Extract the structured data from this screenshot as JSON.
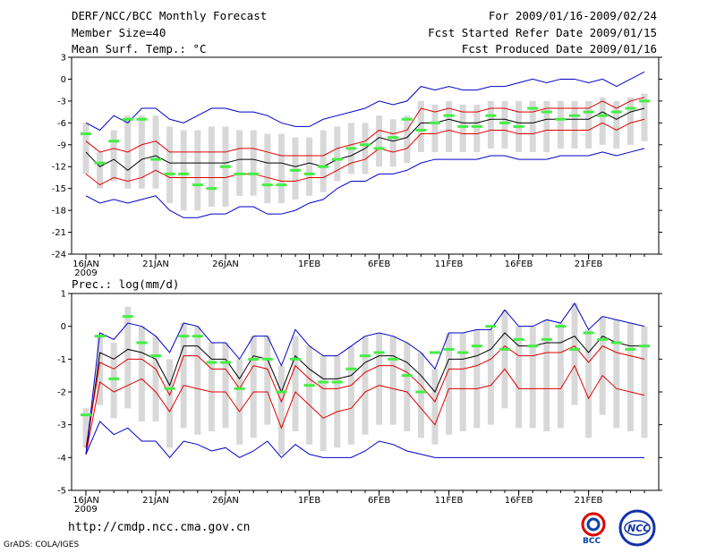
{
  "header": {
    "title": "DERF/NCC/BCC Monthly Forecast",
    "member": "Member Size=40",
    "var1": "Mean Surf. Temp.: °C",
    "period": "For 2009/01/16-2009/02/24",
    "started": "Fcst Started Refer Date 2009/01/15",
    "produced": "Fcst Produced Date 2009/01/16"
  },
  "panel2_title": "Prec.: log(mm/d)",
  "footer": {
    "url": "http://cmdp.ncc.cma.gov.cn",
    "grads": "GrADS: COLA/IGES"
  },
  "logos": {
    "bcc": "BCC",
    "ncc": "NCC"
  },
  "colors": {
    "blue": "#0000c8",
    "red": "#e00000",
    "green": "#44ee44",
    "box": "#d8d8d8"
  },
  "chart_data": [
    {
      "type": "line",
      "title": "Mean Surf. Temp.: °C",
      "x_ticks": [
        "16JAN",
        "21JAN",
        "26JAN",
        "1FEB",
        "6FEB",
        "11FEB",
        "16FEB",
        "21FEB"
      ],
      "x_tick_index": [
        0,
        5,
        10,
        16,
        21,
        26,
        31,
        36
      ],
      "year_label": "2009",
      "ylim": [
        -24,
        3
      ],
      "yticks": [
        3,
        0,
        -3,
        -6,
        -9,
        -12,
        -15,
        -18,
        -21,
        -24
      ],
      "series": [
        {
          "name": "ensemble-mean",
          "color": "black",
          "values": [
            -10,
            -12,
            -11,
            -12.5,
            -11,
            -10.5,
            -11.5,
            -11.5,
            -11.5,
            -11.5,
            -11.5,
            -11,
            -11,
            -11.5,
            -11.5,
            -12,
            -11.5,
            -12,
            -11,
            -10.5,
            -9.5,
            -8,
            -8.5,
            -8,
            -6,
            -6,
            -5.5,
            -6,
            -6,
            -5.5,
            -5.5,
            -6,
            -6,
            -5.5,
            -5.5,
            -5.5,
            -5.5,
            -4.5,
            -5.5,
            -4.5,
            -4
          ]
        },
        {
          "name": "upper-spread",
          "color": "red",
          "values": [
            -8.5,
            -10,
            -9.5,
            -10,
            -9,
            -8.5,
            -10,
            -10,
            -10,
            -10,
            -10,
            -9.5,
            -9.5,
            -10,
            -10.5,
            -10.5,
            -10.5,
            -10.5,
            -9.5,
            -9,
            -8.5,
            -7,
            -7.5,
            -7,
            -4,
            -4.5,
            -4,
            -4.5,
            -4.5,
            -4,
            -4,
            -4.5,
            -4.5,
            -4,
            -4,
            -4,
            -4,
            -3,
            -4,
            -3,
            -2.5
          ]
        },
        {
          "name": "lower-spread",
          "color": "red",
          "values": [
            -13,
            -14.5,
            -13.5,
            -14,
            -13.5,
            -12.5,
            -13.5,
            -13.5,
            -13.5,
            -13.5,
            -13.5,
            -13,
            -13,
            -13.5,
            -14,
            -14,
            -13.5,
            -13.5,
            -12.5,
            -11.5,
            -11,
            -9.5,
            -10,
            -9.5,
            -7.5,
            -7.5,
            -7,
            -7.5,
            -7.5,
            -7,
            -7,
            -7.5,
            -7.5,
            -7,
            -7,
            -7,
            -7,
            -6,
            -7,
            -6,
            -5.5
          ]
        },
        {
          "name": "ensemble-max",
          "color": "blue",
          "values": [
            -6,
            -7,
            -5,
            -6,
            -4,
            -4,
            -5.5,
            -6,
            -5,
            -4,
            -4,
            -4.5,
            -4.5,
            -5,
            -6,
            -6.5,
            -6.5,
            -5.5,
            -5,
            -4.5,
            -4,
            -3,
            -3.5,
            -3,
            -1,
            -1.5,
            -1,
            -1.5,
            -1.5,
            -1,
            -1,
            -0.5,
            0,
            -0.5,
            0,
            0,
            -0.5,
            0,
            -1,
            0,
            1
          ]
        },
        {
          "name": "ensemble-min",
          "color": "blue",
          "values": [
            -16,
            -17,
            -16.5,
            -17,
            -16.5,
            -16,
            -18,
            -19,
            -19,
            -18.5,
            -18.5,
            -17.5,
            -17.5,
            -18.5,
            -18.5,
            -18,
            -17,
            -16.5,
            -15,
            -14,
            -14,
            -13,
            -13,
            -12.5,
            -11.5,
            -11,
            -11,
            -11,
            -11,
            -10.5,
            -10.5,
            -11,
            -11,
            -11,
            -10.5,
            -10.5,
            -10.5,
            -10,
            -10.5,
            -10,
            -9.5
          ]
        }
      ],
      "observed": [
        -7.5,
        -11.5,
        -8.5,
        -5.5,
        -5.5,
        -11,
        -13,
        -13,
        -14.5,
        -15,
        -12,
        -13,
        -13,
        -14.5,
        -14.5,
        -12.5,
        -13,
        -12,
        -11,
        -9.5,
        -9,
        -9.5,
        -8,
        -5.5,
        -7,
        -6,
        -5,
        -6.5,
        -6.5,
        -5,
        -6,
        -6.5,
        -4,
        -4.5,
        -5.5,
        -5,
        -4.5,
        -5,
        -4.5,
        -4,
        -3
      ],
      "box_high": [
        -6,
        -10,
        -7,
        -5,
        -5,
        -5,
        -6.5,
        -7,
        -7,
        -6.5,
        -6.5,
        -7,
        -7,
        -7.5,
        -7.5,
        -8,
        -8,
        -7,
        -6.5,
        -6,
        -6,
        -5,
        -5.5,
        -5,
        -3,
        -3.5,
        -3,
        -3.5,
        -3.5,
        -3,
        -3,
        -3,
        -3,
        -3,
        -3,
        -3,
        -3,
        -2.5,
        -3,
        -2.5,
        -2
      ],
      "box_low": [
        -13,
        -15,
        -14,
        -15,
        -15,
        -15,
        -17,
        -18,
        -18,
        -17.5,
        -17.5,
        -16,
        -16,
        -17,
        -17,
        -16.5,
        -16,
        -15.5,
        -14,
        -13,
        -13,
        -12,
        -12,
        -11.5,
        -10,
        -10,
        -10,
        -10,
        -10,
        -9.5,
        -9.5,
        -10,
        -10,
        -10,
        -9.5,
        -9.5,
        -9.5,
        -9,
        -9.5,
        -9,
        -8.5
      ]
    },
    {
      "type": "line",
      "title": "Prec.: log(mm/d)",
      "x_ticks": [
        "16JAN",
        "21JAN",
        "26JAN",
        "1FEB",
        "6FEB",
        "11FEB",
        "16FEB",
        "21FEB"
      ],
      "x_tick_index": [
        0,
        5,
        10,
        16,
        21,
        26,
        31,
        36
      ],
      "year_label": "2009",
      "ylim": [
        -5,
        1
      ],
      "yticks": [
        1,
        0,
        -1,
        -2,
        -3,
        -4,
        -5
      ],
      "series": [
        {
          "name": "ensemble-mean",
          "color": "black",
          "values": [
            -3.9,
            -0.8,
            -1,
            -0.7,
            -0.8,
            -1,
            -1.8,
            -0.6,
            -0.6,
            -1,
            -1,
            -1.6,
            -0.9,
            -1,
            -2,
            -0.9,
            -1.3,
            -1.6,
            -1.6,
            -1.5,
            -1.1,
            -0.9,
            -0.9,
            -1.1,
            -1.5,
            -2,
            -1,
            -1,
            -0.9,
            -0.7,
            -0.2,
            -0.6,
            -0.6,
            -0.5,
            -0.5,
            -0.3,
            -0.8,
            -0.3,
            -0.5,
            -0.6,
            -0.6
          ]
        },
        {
          "name": "upper-spread",
          "color": "red",
          "values": [
            -3.7,
            -1.1,
            -1.3,
            -1,
            -1,
            -1.3,
            -2.1,
            -0.9,
            -0.9,
            -1.3,
            -1.3,
            -1.9,
            -1.2,
            -1.3,
            -2.3,
            -1.2,
            -1.6,
            -1.9,
            -1.9,
            -1.8,
            -1.4,
            -1.2,
            -1.2,
            -1.4,
            -1.8,
            -2.3,
            -1.3,
            -1.3,
            -1.2,
            -1,
            -0.6,
            -0.9,
            -0.9,
            -0.8,
            -0.8,
            -0.6,
            -1.1,
            -0.6,
            -0.8,
            -0.9,
            -1
          ]
        },
        {
          "name": "lower-spread",
          "color": "red",
          "values": [
            -3.9,
            -1.7,
            -2,
            -1.8,
            -1.6,
            -2,
            -2.6,
            -1.8,
            -1.9,
            -2,
            -2,
            -2.6,
            -2,
            -2,
            -3.1,
            -2,
            -2.4,
            -2.8,
            -2.6,
            -2.5,
            -2,
            -1.8,
            -1.9,
            -2,
            -2.5,
            -3,
            -1.9,
            -1.9,
            -1.9,
            -1.8,
            -1.3,
            -1.9,
            -1.9,
            -1.9,
            -1.9,
            -1.2,
            -2.2,
            -1.5,
            -1.9,
            -2,
            -2.1
          ]
        },
        {
          "name": "ensemble-max",
          "color": "blue",
          "values": [
            -3.9,
            -0.2,
            -0.4,
            0.1,
            0,
            -0.3,
            -0.8,
            0.1,
            0,
            -0.5,
            -0.5,
            -1,
            -0.3,
            -0.3,
            -1.2,
            -0.1,
            -0.6,
            -0.9,
            -0.9,
            -0.6,
            -0.3,
            -0.2,
            -0.3,
            -0.5,
            -0.8,
            -1.3,
            -0.2,
            -0.2,
            -0.1,
            -0.1,
            0.5,
            0,
            0,
            0.2,
            0.1,
            0.7,
            -0.1,
            0.3,
            0.2,
            0.1,
            0
          ]
        },
        {
          "name": "ensemble-min",
          "color": "blue",
          "values": [
            -3.9,
            -2.9,
            -3.3,
            -3.1,
            -3.5,
            -3.5,
            -4,
            -3.5,
            -3.6,
            -3.8,
            -3.7,
            -4,
            -3.8,
            -3.5,
            -4,
            -3.6,
            -3.9,
            -4,
            -4,
            -4,
            -3.8,
            -3.5,
            -3.6,
            -3.8,
            -3.9,
            -4,
            -4,
            -4,
            -4,
            -4,
            -4,
            -4,
            -4,
            -4,
            -4,
            -4,
            -4,
            -4,
            -4,
            -4,
            -4
          ]
        }
      ],
      "observed": [
        -2.7,
        -0.3,
        -1.6,
        0.3,
        -0.5,
        -0.9,
        -1.9,
        -0.3,
        -0.3,
        -1.1,
        -1.1,
        -1.9,
        -1,
        -1,
        -2,
        -1,
        -1.8,
        -1.7,
        -1.7,
        -1.3,
        -0.9,
        -0.8,
        -1,
        -1.5,
        -2,
        -0.8,
        -0.7,
        -0.8,
        -0.6,
        0,
        -0.7,
        -0.4,
        -0.6,
        -0.4,
        0,
        -0.7,
        -0.2,
        -0.4,
        -0.5,
        -0.7,
        -0.6
      ],
      "box_high": [
        -2.5,
        -0.3,
        -0.5,
        0.6,
        0,
        -0.3,
        -1,
        0.1,
        0,
        -0.5,
        -0.5,
        -1,
        -0.3,
        -0.3,
        -1.2,
        -0.3,
        -0.6,
        -0.9,
        -0.9,
        -0.6,
        -0.3,
        -0.2,
        -0.3,
        -0.5,
        -0.8,
        -1.3,
        -0.2,
        -0.2,
        -0.1,
        -0.1,
        0.5,
        0,
        0,
        0.2,
        0.1,
        0.7,
        -0.1,
        0.3,
        0.2,
        0.1,
        0
      ],
      "box_low": [
        -3.7,
        -2.4,
        -2.8,
        -2.5,
        -2.9,
        -2.9,
        -3.7,
        -3.1,
        -3.3,
        -3.2,
        -3.1,
        -3.6,
        -3.4,
        -3,
        -3.9,
        -3.2,
        -3.6,
        -3.8,
        -3.7,
        -3.6,
        -3.3,
        -3,
        -3,
        -3.2,
        -3.4,
        -3.6,
        -3.3,
        -3.2,
        -3.1,
        -3,
        -2.5,
        -3.1,
        -3.1,
        -3.2,
        -3.1,
        -2.4,
        -3.4,
        -2.7,
        -3.1,
        -3.2,
        -3.4
      ]
    }
  ]
}
